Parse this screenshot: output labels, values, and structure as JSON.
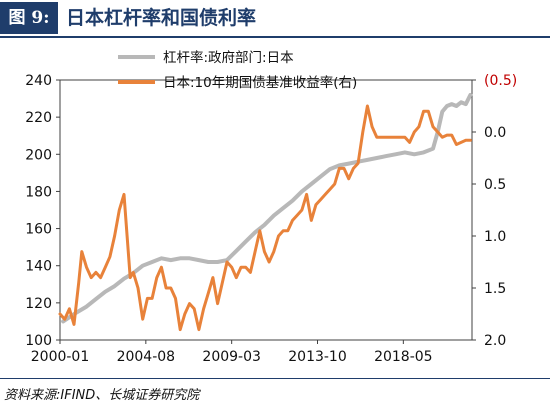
{
  "header": {
    "figure_label": "图 9:",
    "title": "日本杠杆率和国债利率"
  },
  "source": "资料来源:IFIND、长城证券研究院",
  "colors": {
    "leverage": "#b8b8b8",
    "yield": "#e8823a",
    "header": "#1f3d6b",
    "right_axis_top": "#c00000"
  },
  "chart_data": {
    "type": "line",
    "title": "",
    "x_ticks": [
      "2000-01",
      "2004-08",
      "2009-03",
      "2013-10",
      "2018-05"
    ],
    "y_left": {
      "ticks": [
        100,
        120,
        140,
        160,
        180,
        200,
        220,
        240
      ],
      "lim": [
        100,
        240
      ]
    },
    "y_right": {
      "ticks": [
        "(0.5)",
        "0.0",
        "0.5",
        "1.0",
        "1.5",
        "2.0"
      ],
      "lim": [
        -0.5,
        2.0
      ],
      "inverted": true
    },
    "legend": "top-center",
    "series": [
      {
        "name": "杠杆率:政府部门:日本",
        "axis": "left",
        "x": [
          "2000-03",
          "2000-12",
          "2001-06",
          "2001-12",
          "2002-06",
          "2002-12",
          "2003-06",
          "2003-12",
          "2004-06",
          "2004-12",
          "2005-06",
          "2005-12",
          "2006-06",
          "2006-12",
          "2007-06",
          "2007-12",
          "2008-06",
          "2008-12",
          "2009-06",
          "2009-12",
          "2010-06",
          "2010-12",
          "2011-06",
          "2011-12",
          "2012-06",
          "2012-12",
          "2013-06",
          "2013-12",
          "2014-06",
          "2014-12",
          "2015-06",
          "2015-12",
          "2016-06",
          "2016-12",
          "2017-06",
          "2017-12",
          "2018-06",
          "2018-12",
          "2019-06",
          "2019-12",
          "2020-03",
          "2020-06",
          "2020-09",
          "2020-12",
          "2021-03",
          "2021-06",
          "2021-09",
          "2021-12"
        ],
        "values": [
          110,
          115,
          118,
          122,
          126,
          129,
          133,
          136,
          140,
          142,
          144,
          143,
          144,
          144,
          143,
          142,
          142,
          143,
          148,
          153,
          158,
          162,
          167,
          171,
          175,
          180,
          184,
          188,
          192,
          194,
          195,
          196,
          197,
          198,
          199,
          200,
          201,
          200,
          201,
          203,
          212,
          223,
          226,
          227,
          226,
          228,
          227,
          232
        ]
      },
      {
        "name": "日本:10年期国债基准收益率(右)",
        "axis": "right",
        "x": [
          "2000-01",
          "2000-04",
          "2000-07",
          "2000-10",
          "2001-01",
          "2001-03",
          "2001-06",
          "2001-09",
          "2001-12",
          "2002-03",
          "2002-06",
          "2002-09",
          "2002-12",
          "2003-03",
          "2003-06",
          "2003-08",
          "2003-10",
          "2003-12",
          "2004-03",
          "2004-06",
          "2004-09",
          "2004-12",
          "2005-03",
          "2005-06",
          "2005-09",
          "2005-12",
          "2006-03",
          "2006-06",
          "2006-09",
          "2006-12",
          "2007-03",
          "2007-06",
          "2007-09",
          "2007-12",
          "2008-03",
          "2008-06",
          "2008-09",
          "2008-12",
          "2009-03",
          "2009-06",
          "2009-09",
          "2009-12",
          "2010-03",
          "2010-06",
          "2010-09",
          "2010-12",
          "2011-03",
          "2011-06",
          "2011-09",
          "2011-12",
          "2012-03",
          "2012-06",
          "2012-09",
          "2012-12",
          "2013-03",
          "2013-06",
          "2013-09",
          "2013-12",
          "2014-03",
          "2014-06",
          "2014-09",
          "2014-12",
          "2015-03",
          "2015-06",
          "2015-09",
          "2015-12",
          "2016-03",
          "2016-06",
          "2016-09",
          "2016-12",
          "2017-03",
          "2017-06",
          "2017-09",
          "2017-12",
          "2018-03",
          "2018-06",
          "2018-09",
          "2018-12",
          "2019-03",
          "2019-06",
          "2019-09",
          "2019-12",
          "2020-03",
          "2020-06",
          "2020-09",
          "2020-12",
          "2021-03",
          "2021-06",
          "2021-09",
          "2021-12"
        ],
        "values": [
          1.75,
          1.8,
          1.7,
          1.85,
          1.45,
          1.15,
          1.3,
          1.4,
          1.35,
          1.4,
          1.3,
          1.2,
          1.0,
          0.75,
          0.6,
          1.0,
          1.4,
          1.35,
          1.5,
          1.8,
          1.6,
          1.6,
          1.4,
          1.3,
          1.5,
          1.5,
          1.6,
          1.9,
          1.75,
          1.65,
          1.7,
          1.9,
          1.7,
          1.55,
          1.4,
          1.65,
          1.45,
          1.25,
          1.3,
          1.4,
          1.3,
          1.3,
          1.35,
          1.15,
          0.95,
          1.15,
          1.25,
          1.15,
          1.0,
          0.95,
          0.95,
          0.85,
          0.8,
          0.75,
          0.6,
          0.85,
          0.7,
          0.65,
          0.6,
          0.55,
          0.5,
          0.35,
          0.35,
          0.45,
          0.35,
          0.3,
          0.0,
          -0.25,
          -0.05,
          0.05,
          0.05,
          0.05,
          0.05,
          0.05,
          0.05,
          0.05,
          0.1,
          0.0,
          -0.05,
          -0.2,
          -0.2,
          -0.05,
          0.0,
          0.05,
          0.03,
          0.03,
          0.12,
          0.1,
          0.08,
          0.08
        ]
      }
    ]
  }
}
